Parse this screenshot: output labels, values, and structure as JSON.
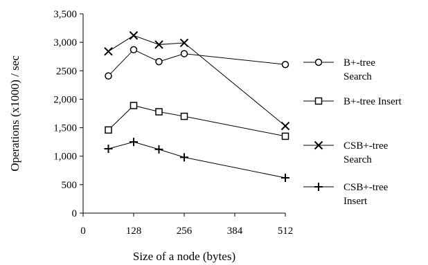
{
  "chart_data": {
    "type": "line",
    "xlabel": "Size of a node (bytes)",
    "ylabel": "Operations (x1000) / sec",
    "xlim": [
      0,
      512
    ],
    "ylim": [
      0,
      3500
    ],
    "xticks": [
      0,
      128,
      256,
      384,
      512
    ],
    "xtick_labels": [
      "0",
      "128",
      "256",
      "384",
      "512"
    ],
    "yticks": [
      0,
      500,
      1000,
      1500,
      2000,
      2500,
      3000,
      3500
    ],
    "ytick_labels": [
      "0",
      "500",
      "1,000",
      "1,500",
      "2,000",
      "2500",
      "3,000",
      "3,500"
    ],
    "grid": false,
    "legend_position": "right",
    "series": [
      {
        "name": [
          "B+-tree",
          "Search"
        ],
        "marker": "circle",
        "x": [
          64,
          128,
          192,
          256,
          512
        ],
        "y": [
          2410,
          2870,
          2660,
          2800,
          2610
        ]
      },
      {
        "name": [
          "B+-tree Insert"
        ],
        "marker": "square",
        "x": [
          64,
          128,
          192,
          256,
          512
        ],
        "y": [
          1460,
          1890,
          1780,
          1700,
          1350
        ]
      },
      {
        "name": [
          "CSB+-tree",
          "Search"
        ],
        "marker": "x",
        "x": [
          64,
          128,
          192,
          256,
          512
        ],
        "y": [
          2840,
          3120,
          2960,
          2990,
          1530
        ]
      },
      {
        "name": [
          "CSB+-tree",
          "Insert"
        ],
        "marker": "plus",
        "x": [
          64,
          128,
          192,
          256,
          512
        ],
        "y": [
          1130,
          1250,
          1120,
          980,
          620
        ]
      }
    ]
  }
}
